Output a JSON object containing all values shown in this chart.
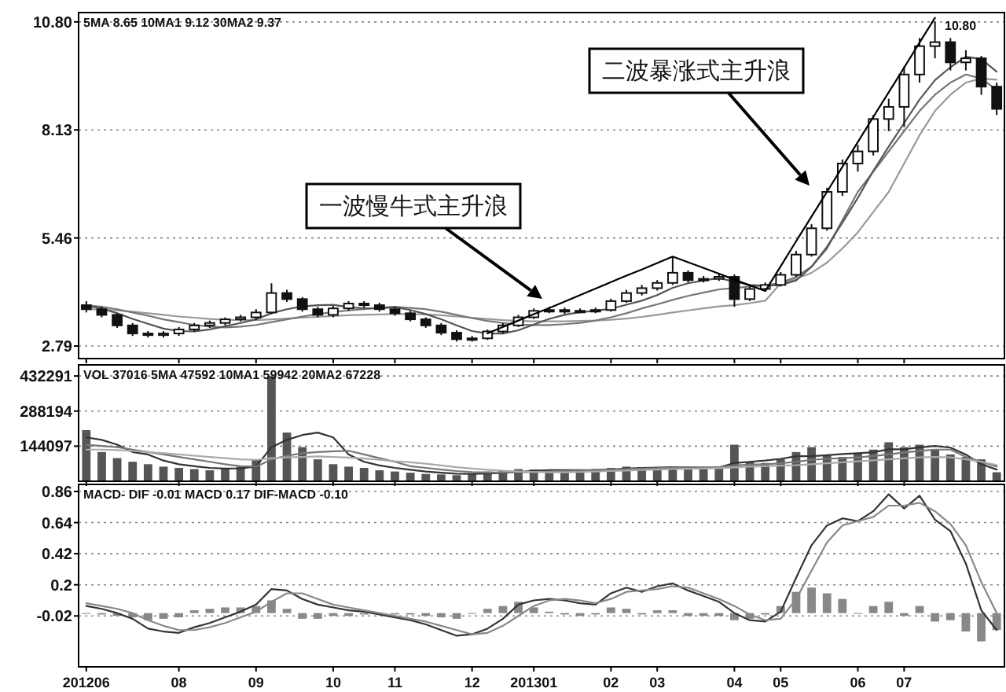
{
  "chart_data": [
    {
      "type": "candlestick",
      "annotations": [
        "5MA 8.65 10MA1 9.12 30MA2 9.37",
        "10.80",
        "一波慢牛式主升浪",
        "二波暴涨式主升浪"
      ],
      "categories": [
        "201206",
        null,
        null,
        null,
        null,
        null,
        "08",
        null,
        null,
        null,
        null,
        "09",
        null,
        null,
        null,
        null,
        "10",
        null,
        null,
        null,
        "11",
        null,
        null,
        null,
        null,
        "12",
        null,
        null,
        null,
        "201301",
        null,
        null,
        null,
        null,
        "02",
        null,
        null,
        "03",
        null,
        null,
        null,
        null,
        "04",
        null,
        null,
        "05",
        null,
        null,
        null,
        null,
        "06",
        null,
        null,
        "07",
        null,
        null,
        null,
        null,
        null,
        null
      ],
      "ylim": [
        2.48,
        11.03
      ],
      "yticks": [
        {
          "value": 2.79,
          "label": "2.79"
        },
        {
          "value": 5.46,
          "label": "5.46"
        },
        {
          "value": 8.13,
          "label": "8.13"
        },
        {
          "value": 10.8,
          "label": "10.80"
        }
      ],
      "grid": "y",
      "tick_labels": "y",
      "series": [
        {
          "type": "line",
          "color": "#999999",
          "values": [
            3.7,
            3.69,
            3.67,
            3.64,
            3.6,
            3.56,
            3.52,
            3.49,
            3.46,
            3.44,
            3.43,
            3.43,
            3.45,
            3.47,
            3.49,
            3.51,
            3.53,
            3.55,
            3.56,
            3.57,
            3.58,
            3.58,
            3.57,
            3.55,
            3.52,
            3.49,
            3.46,
            3.43,
            3.41,
            3.4,
            3.4,
            3.4,
            3.41,
            3.42,
            3.44,
            3.47,
            3.51,
            3.56,
            3.62,
            3.67,
            3.72,
            3.77,
            3.8,
            3.85,
            3.91,
            4.34,
            4.45,
            4.6,
            4.85,
            5.2,
            5.6,
            6.1,
            6.6,
            7.3,
            8.0,
            8.6,
            9.0,
            9.3,
            9.4,
            9.37
          ]
        },
        {
          "type": "line",
          "color": "#777777",
          "values": [
            3.8,
            3.76,
            3.7,
            3.62,
            3.54,
            3.45,
            3.38,
            3.31,
            3.27,
            3.25,
            3.27,
            3.31,
            3.38,
            3.45,
            3.52,
            3.58,
            3.63,
            3.67,
            3.7,
            3.74,
            3.76,
            3.73,
            3.7,
            3.64,
            3.56,
            3.48,
            3.41,
            3.36,
            3.32,
            3.31,
            3.31,
            3.33,
            3.36,
            3.42,
            3.5,
            3.6,
            3.72,
            3.82,
            3.93,
            4.03,
            4.11,
            4.19,
            4.22,
            4.26,
            4.29,
            4.35,
            4.5,
            4.75,
            5.2,
            5.9,
            6.6,
            7.1,
            7.6,
            8.1,
            8.6,
            9.0,
            9.3,
            9.5,
            9.4,
            9.12
          ]
        },
        {
          "type": "line",
          "color": "#555555",
          "values": [
            3.78,
            3.72,
            3.6,
            3.46,
            3.34,
            3.22,
            3.16,
            3.15,
            3.2,
            3.28,
            3.36,
            3.45,
            3.6,
            3.7,
            3.77,
            3.8,
            3.81,
            3.75,
            3.72,
            3.72,
            3.75,
            3.68,
            3.58,
            3.45,
            3.3,
            3.16,
            3.1,
            3.1,
            3.18,
            3.32,
            3.46,
            3.56,
            3.63,
            3.66,
            3.71,
            3.81,
            3.91,
            4.05,
            4.23,
            4.34,
            4.41,
            4.47,
            4.38,
            4.3,
            4.28,
            4.3,
            4.41,
            4.75,
            5.24,
            5.84,
            6.45,
            7.12,
            7.72,
            8.3,
            8.88,
            9.36,
            9.68,
            9.94,
            9.88,
            9.57
          ]
        },
        {
          "color": "#111111",
          "ohlc": [
            [
              3.8,
              3.9,
              3.62,
              3.7
            ],
            [
              3.7,
              3.76,
              3.5,
              3.56
            ],
            [
              3.56,
              3.6,
              3.24,
              3.3
            ],
            [
              3.3,
              3.36,
              3.04,
              3.1
            ],
            [
              3.1,
              3.16,
              3.0,
              3.06
            ],
            [
              3.06,
              3.16,
              3.0,
              3.1
            ],
            [
              3.1,
              3.26,
              3.04,
              3.2
            ],
            [
              3.2,
              3.36,
              3.14,
              3.3
            ],
            [
              3.3,
              3.42,
              3.24,
              3.36
            ],
            [
              3.36,
              3.5,
              3.3,
              3.45
            ],
            [
              3.45,
              3.56,
              3.4,
              3.5
            ],
            [
              3.5,
              3.7,
              3.44,
              3.62
            ],
            [
              3.62,
              4.34,
              3.58,
              4.1
            ],
            [
              4.1,
              4.18,
              3.88,
              3.95
            ],
            [
              3.95,
              4.0,
              3.64,
              3.7
            ],
            [
              3.7,
              3.76,
              3.5,
              3.56
            ],
            [
              3.56,
              3.78,
              3.5,
              3.72
            ],
            [
              3.72,
              3.9,
              3.66,
              3.84
            ],
            [
              3.84,
              3.9,
              3.74,
              3.8
            ],
            [
              3.8,
              3.86,
              3.64,
              3.7
            ],
            [
              3.7,
              3.76,
              3.54,
              3.6
            ],
            [
              3.6,
              3.66,
              3.4,
              3.45
            ],
            [
              3.45,
              3.5,
              3.24,
              3.3
            ],
            [
              3.3,
              3.36,
              3.06,
              3.12
            ],
            [
              3.12,
              3.18,
              2.9,
              2.96
            ],
            [
              2.96,
              3.04,
              2.9,
              2.98
            ],
            [
              2.98,
              3.2,
              2.94,
              3.15
            ],
            [
              3.15,
              3.36,
              3.1,
              3.3
            ],
            [
              3.3,
              3.56,
              3.26,
              3.5
            ],
            [
              3.5,
              3.72,
              3.46,
              3.66
            ],
            [
              3.66,
              3.76,
              3.6,
              3.68
            ],
            [
              3.68,
              3.74,
              3.58,
              3.64
            ],
            [
              3.64,
              3.72,
              3.6,
              3.66
            ],
            [
              3.66,
              3.74,
              3.6,
              3.68
            ],
            [
              3.68,
              3.96,
              3.64,
              3.9
            ],
            [
              3.9,
              4.18,
              3.86,
              4.1
            ],
            [
              4.1,
              4.3,
              4.04,
              4.22
            ],
            [
              4.22,
              4.42,
              4.16,
              4.35
            ],
            [
              4.35,
              5.0,
              4.3,
              4.6
            ],
            [
              4.6,
              4.66,
              4.36,
              4.42
            ],
            [
              4.42,
              4.52,
              4.36,
              4.45
            ],
            [
              4.45,
              4.58,
              4.4,
              4.5
            ],
            [
              4.5,
              4.56,
              3.76,
              3.95
            ],
            [
              3.95,
              4.26,
              3.9,
              4.2
            ],
            [
              4.2,
              4.36,
              4.14,
              4.3
            ],
            [
              4.3,
              4.62,
              4.26,
              4.55
            ],
            [
              4.55,
              5.14,
              4.5,
              5.05
            ],
            [
              5.05,
              5.8,
              5.0,
              5.7
            ],
            [
              5.7,
              6.7,
              5.64,
              6.6
            ],
            [
              6.6,
              7.4,
              6.5,
              7.3
            ],
            [
              7.3,
              7.76,
              7.1,
              7.6
            ],
            [
              7.6,
              8.5,
              7.5,
              8.4
            ],
            [
              8.4,
              8.9,
              8.1,
              8.7
            ],
            [
              8.7,
              9.7,
              8.2,
              9.5
            ],
            [
              9.5,
              10.4,
              9.3,
              10.2
            ],
            [
              10.2,
              10.8,
              9.9,
              10.3
            ],
            [
              10.3,
              10.4,
              9.6,
              9.8
            ],
            [
              9.8,
              10.1,
              9.6,
              9.9
            ],
            [
              9.9,
              9.96,
              9.0,
              9.2
            ],
            [
              9.2,
              9.3,
              8.5,
              8.65
            ]
          ]
        },
        {
          "type": "line",
          "color": "#000000",
          "values": [
            null,
            null,
            null,
            null,
            null,
            null,
            null,
            null,
            null,
            null,
            null,
            null,
            null,
            null,
            null,
            null,
            null,
            null,
            null,
            null,
            null,
            null,
            null,
            null,
            null,
            null,
            3.1,
            3.26,
            3.42,
            3.58,
            3.73,
            3.89,
            4.05,
            4.21,
            4.37,
            4.53,
            4.68,
            4.84,
            5.0,
            4.86,
            4.72,
            4.58,
            4.43,
            4.29,
            4.15,
            4.76,
            5.38,
            5.99,
            6.6,
            7.22,
            7.83,
            8.45,
            9.06,
            9.67,
            10.29,
            10.9,
            null,
            null,
            null,
            null
          ]
        }
      ]
    },
    {
      "type": "bar",
      "annotations": [
        "VOL 37016 5MA 47592 10MA1 59942 20MA2 67228"
      ],
      "categories": [
        "201206",
        null,
        null,
        null,
        null,
        null,
        "08",
        null,
        null,
        null,
        null,
        "09",
        null,
        null,
        null,
        null,
        "10",
        null,
        null,
        null,
        "11",
        null,
        null,
        null,
        null,
        "12",
        null,
        null,
        null,
        "201301",
        null,
        null,
        null,
        null,
        "02",
        null,
        null,
        "03",
        null,
        null,
        null,
        null,
        "04",
        null,
        null,
        "05",
        null,
        null,
        null,
        null,
        "06",
        null,
        null,
        "07",
        null,
        null,
        null,
        null,
        null,
        null
      ],
      "ylim": [
        0,
        478000
      ],
      "yticks": [
        144097,
        288194,
        432291
      ],
      "grid": "y",
      "tick_labels": "y",
      "series": [
        {
          "color": "#555555",
          "values": [
            210000,
            120000,
            95000,
            80000,
            70000,
            60000,
            55000,
            50000,
            45000,
            55000,
            60000,
            90000,
            432000,
            200000,
            140000,
            90000,
            70000,
            60000,
            55000,
            45000,
            40000,
            35000,
            30000,
            28000,
            25000,
            30000,
            40000,
            45000,
            50000,
            48000,
            45000,
            42000,
            45000,
            50000,
            55000,
            60000,
            58000,
            55000,
            60000,
            50000,
            55000,
            60000,
            150000,
            80000,
            75000,
            90000,
            120000,
            140000,
            110000,
            100000,
            115000,
            130000,
            160000,
            140000,
            150000,
            130000,
            110000,
            100000,
            90000,
            37000
          ]
        },
        {
          "type": "line",
          "color": "#333333",
          "values": [
            180000,
            170000,
            150000,
            120000,
            110000,
            85000,
            70000,
            62000,
            55000,
            52000,
            53000,
            60000,
            140000,
            170000,
            190000,
            200000,
            180000,
            110000,
            80000,
            65000,
            55000,
            47000,
            40000,
            35000,
            31000,
            30000,
            32000,
            34000,
            38000,
            43000,
            46000,
            46000,
            46000,
            46000,
            48000,
            52000,
            55000,
            56000,
            58000,
            57000,
            56000,
            56000,
            75000,
            80000,
            85000,
            92000,
            103000,
            103000,
            107000,
            112000,
            115000,
            119000,
            131000,
            131000,
            139000,
            145000,
            138000,
            110000,
            70000,
            48000
          ]
        },
        {
          "type": "line",
          "color": "#777777",
          "values": [
            150000,
            145000,
            140000,
            130000,
            120000,
            110000,
            100000,
            90000,
            80000,
            70000,
            62000,
            60000,
            90000,
            105000,
            115000,
            120000,
            123000,
            125000,
            110000,
            95000,
            80000,
            62000,
            55000,
            48000,
            42000,
            38000,
            36000,
            36000,
            37000,
            38000,
            40000,
            42000,
            44000,
            46000,
            48000,
            50000,
            52000,
            54000,
            56000,
            56000,
            57000,
            58000,
            65000,
            68000,
            70000,
            74000,
            80000,
            88000,
            92000,
            95000,
            98000,
            104000,
            110000,
            118000,
            125000,
            130000,
            130000,
            100000,
            80000,
            60000
          ]
        },
        {
          "type": "line",
          "color": "#aaaaaa",
          "values": [
            130000,
            130000,
            128000,
            125000,
            120000,
            115000,
            110000,
            105000,
            100000,
            95000,
            90000,
            88000,
            95000,
            98000,
            100000,
            102000,
            100000,
            97000,
            93000,
            88000,
            82000,
            78000,
            72000,
            65000,
            58000,
            52000,
            47000,
            43000,
            40000,
            38000,
            37000,
            37000,
            38000,
            40000,
            42000,
            44000,
            46000,
            48000,
            50000,
            51000,
            52000,
            54000,
            57000,
            60000,
            62000,
            64000,
            66000,
            70000,
            74000,
            78000,
            82000,
            86000,
            90000,
            94000,
            98000,
            100000,
            98000,
            90000,
            80000,
            67000
          ]
        }
      ]
    },
    {
      "type": "bar",
      "annotations": [
        "MACD- DIF -0.01 MACD 0.17 DIF-MACD -0.10"
      ],
      "categories": [
        "201206",
        null,
        null,
        null,
        null,
        null,
        "08",
        null,
        null,
        null,
        null,
        "09",
        null,
        null,
        null,
        null,
        "10",
        null,
        null,
        null,
        "11",
        null,
        null,
        null,
        null,
        "12",
        null,
        null,
        null,
        "201301",
        null,
        null,
        null,
        null,
        "02",
        null,
        null,
        "03",
        null,
        null,
        null,
        null,
        "04",
        null,
        null,
        "05",
        null,
        null,
        null,
        null,
        "06",
        null,
        null,
        "07",
        null,
        null,
        null,
        null,
        null,
        null
      ],
      "ylim": [
        -0.38,
        0.91
      ],
      "yticks": [
        -0.02,
        0.2,
        0.42,
        0.64,
        0.86
      ],
      "grid": "y",
      "series": [
        {
          "color": "#888888",
          "values": [
            0.0,
            -0.01,
            -0.02,
            -0.03,
            -0.05,
            -0.04,
            -0.03,
            0.02,
            0.03,
            0.04,
            0.04,
            0.05,
            0.09,
            0.03,
            -0.04,
            -0.04,
            -0.02,
            -0.02,
            -0.01,
            null,
            -0.01,
            -0.01,
            -0.02,
            -0.03,
            -0.04,
            0.0,
            0.03,
            0.05,
            0.08,
            0.04,
            0.01,
            -0.01,
            -0.02,
            -0.01,
            0.04,
            0.03,
            -0.01,
            0.02,
            0.02,
            -0.02,
            -0.02,
            -0.02,
            -0.05,
            -0.04,
            -0.01,
            0.05,
            0.15,
            0.18,
            0.14,
            0.1,
            0.0,
            0.05,
            0.08,
            -0.02,
            0.05,
            -0.06,
            -0.05,
            -0.13,
            -0.2,
            -0.12
          ]
        },
        {
          "type": "line",
          "color": "#333333",
          "values": [
            0.05,
            0.03,
            0.0,
            -0.04,
            -0.11,
            -0.13,
            -0.14,
            -0.1,
            -0.07,
            -0.03,
            0.01,
            0.06,
            0.17,
            0.16,
            0.1,
            0.06,
            0.04,
            0.02,
            0.01,
            -0.01,
            -0.03,
            -0.05,
            -0.08,
            -0.12,
            -0.16,
            -0.15,
            -0.11,
            -0.04,
            0.06,
            0.09,
            0.1,
            0.09,
            0.07,
            0.06,
            0.14,
            0.18,
            0.15,
            0.19,
            0.21,
            0.16,
            0.12,
            0.08,
            0.0,
            -0.05,
            -0.06,
            0.01,
            0.25,
            0.48,
            0.62,
            0.67,
            0.65,
            0.72,
            0.84,
            0.74,
            0.83,
            0.66,
            0.58,
            0.35,
            0.02,
            -0.12
          ]
        },
        {
          "type": "line",
          "color": "#888888",
          "values": [
            0.07,
            0.05,
            0.03,
            0.0,
            -0.05,
            -0.09,
            -0.12,
            -0.12,
            -0.1,
            -0.07,
            -0.03,
            0.01,
            0.08,
            0.14,
            0.14,
            0.1,
            0.06,
            0.04,
            0.02,
            0.0,
            -0.02,
            -0.04,
            -0.06,
            -0.09,
            -0.12,
            -0.15,
            -0.14,
            -0.09,
            -0.02,
            0.05,
            0.09,
            0.1,
            0.09,
            0.07,
            0.1,
            0.15,
            0.16,
            0.17,
            0.19,
            0.18,
            0.14,
            0.1,
            0.05,
            -0.01,
            -0.05,
            -0.04,
            0.1,
            0.3,
            0.5,
            0.62,
            0.65,
            0.68,
            0.76,
            0.76,
            0.78,
            0.72,
            0.63,
            0.48,
            0.22,
            0.0
          ]
        }
      ]
    }
  ]
}
